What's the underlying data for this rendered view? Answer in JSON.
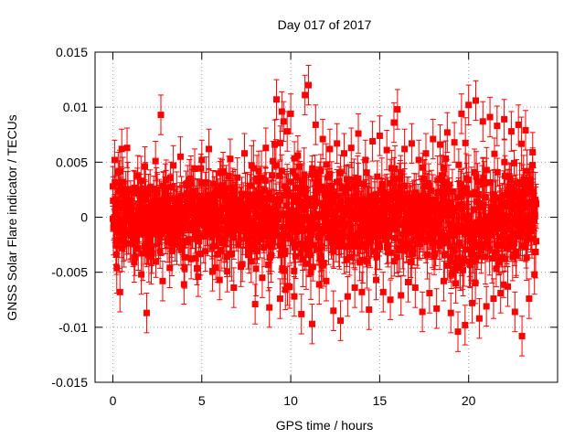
{
  "chart_data": {
    "type": "scatter",
    "title": "Day 017 of 2017",
    "xlabel": "GPS time / hours",
    "ylabel": "GNSS Solar Flare indicator / TECUs",
    "xlim": [
      -1,
      25
    ],
    "ylim": [
      -0.015,
      0.015
    ],
    "xticks": [
      0,
      5,
      10,
      15,
      20
    ],
    "xtick_labels": [
      "0",
      "5",
      "10",
      "15",
      "20"
    ],
    "yticks": [
      -0.015,
      -0.01,
      -0.005,
      0,
      0.005,
      0.01,
      0.015
    ],
    "ytick_labels": [
      "-0.015",
      "-0.01",
      "-0.005",
      "0",
      "0.005",
      "0.01",
      "0.015"
    ],
    "grid": true,
    "legend": "none",
    "series_color": "#ff0000",
    "error_bars": true,
    "typical_error": 0.0018,
    "points_x": [
      0.0,
      0.1,
      0.2,
      0.3,
      0.4,
      0.5,
      0.6,
      0.8,
      1.0,
      1.2,
      1.4,
      1.6,
      1.8,
      1.9,
      2.0,
      2.2,
      2.4,
      2.6,
      2.7,
      2.8,
      3.0,
      3.2,
      3.4,
      3.6,
      3.8,
      4.0,
      4.2,
      4.4,
      4.6,
      4.8,
      5.0,
      5.2,
      5.4,
      5.6,
      5.8,
      6.0,
      6.2,
      6.4,
      6.6,
      6.8,
      7.0,
      7.2,
      7.4,
      7.6,
      7.8,
      8.0,
      8.2,
      8.4,
      8.6,
      8.8,
      9.0,
      9.2,
      9.4,
      9.5,
      9.6,
      9.7,
      9.8,
      10.0,
      10.2,
      10.4,
      10.6,
      10.8,
      11.0,
      11.2,
      11.4,
      11.6,
      11.8,
      12.0,
      12.2,
      12.4,
      12.6,
      12.8,
      13.0,
      13.2,
      13.4,
      13.6,
      13.8,
      14.0,
      14.2,
      14.4,
      14.6,
      14.8,
      15.0,
      15.2,
      15.4,
      15.6,
      15.8,
      16.0,
      16.2,
      16.4,
      16.6,
      16.8,
      17.0,
      17.2,
      17.4,
      17.6,
      17.8,
      18.0,
      18.2,
      18.4,
      18.6,
      18.8,
      19.0,
      19.2,
      19.4,
      19.6,
      19.8,
      20.0,
      20.2,
      20.4,
      20.6,
      20.8,
      21.0,
      21.2,
      21.4,
      21.6,
      21.8,
      22.0,
      22.2,
      22.4,
      22.6,
      22.8,
      23.0,
      23.2,
      23.4,
      23.6,
      23.7,
      23.8
    ],
    "points_y": [
      0.0028,
      0.0052,
      -0.0034,
      0.0041,
      -0.0068,
      0.0062,
      -0.0022,
      0.0063,
      0.0015,
      -0.0041,
      0.0038,
      -0.0052,
      0.0046,
      -0.0087,
      0.0021,
      -0.0033,
      0.0051,
      -0.0012,
      0.0093,
      -0.0058,
      0.0034,
      -0.0046,
      0.0047,
      -0.0025,
      0.0055,
      -0.0061,
      0.0029,
      -0.0038,
      0.0044,
      -0.0054,
      0.0052,
      -0.0031,
      0.0062,
      -0.0049,
      0.0024,
      -0.0057,
      0.0041,
      -0.0036,
      0.0053,
      -0.0064,
      0.0036,
      -0.0045,
      0.0058,
      -0.0029,
      0.0047,
      -0.0079,
      0.0042,
      -0.0055,
      0.0063,
      -0.0082,
      0.0051,
      0.0107,
      -0.0074,
      0.0096,
      0.0087,
      -0.0066,
      0.0078,
      0.0094,
      -0.0072,
      0.0056,
      -0.0088,
      0.0111,
      0.012,
      -0.0097,
      0.0084,
      -0.0061,
      0.0071,
      -0.0058,
      0.0062,
      -0.0085,
      0.0067,
      -0.0094,
      0.0058,
      -0.0072,
      0.0063,
      -0.0064,
      0.0076,
      -0.0068,
      0.0052,
      -0.0084,
      0.0069,
      -0.0057,
      0.0074,
      -0.0068,
      0.0061,
      -0.0075,
      0.0086,
      0.0098,
      -0.0071,
      0.0062,
      -0.0059,
      0.0067,
      -0.0064,
      0.0052,
      -0.0086,
      0.0058,
      -0.0069,
      0.0071,
      -0.0083,
      0.0066,
      -0.0058,
      0.0077,
      -0.0087,
      0.0068,
      -0.0104,
      0.0094,
      -0.0098,
      0.0102,
      -0.0078,
      0.0106,
      -0.0092,
      0.0087,
      -0.0081,
      0.0091,
      -0.0074,
      0.0083,
      -0.0069,
      0.0089,
      -0.0063,
      0.0078,
      -0.0086,
      0.0084,
      -0.0108,
      0.0079,
      -0.0074,
      0.0059,
      -0.0052,
      0.0012
    ]
  }
}
